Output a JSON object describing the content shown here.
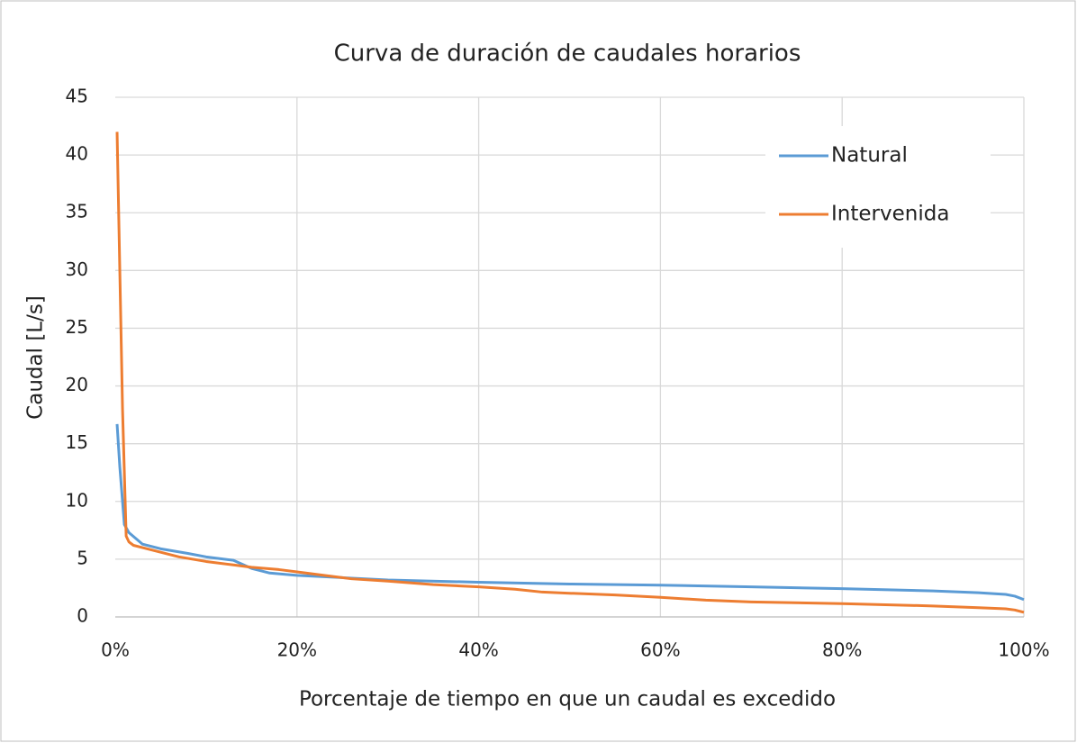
{
  "chart_data": {
    "type": "line",
    "title": "Curva de duración de caudales horarios",
    "xlabel": "Porcentaje de tiempo en que un caudal es excedido",
    "ylabel": "Caudal [L/s]",
    "xlim": [
      0,
      100
    ],
    "xticks": [
      {
        "value": 0,
        "label": "0%"
      },
      {
        "value": 20,
        "label": "20%"
      },
      {
        "value": 40,
        "label": "40%"
      },
      {
        "value": 60,
        "label": "60%"
      },
      {
        "value": 80,
        "label": "80%"
      },
      {
        "value": 100,
        "label": "100%"
      }
    ],
    "ylim": [
      0,
      45
    ],
    "yticks": [
      0,
      5,
      10,
      15,
      20,
      25,
      30,
      35,
      40,
      45
    ],
    "grid": true,
    "legend": "top-right",
    "series": [
      {
        "name": "Natural",
        "color": "#5b9bd5",
        "x": [
          0.2,
          0.5,
          1,
          1.5,
          3,
          5,
          8,
          10,
          13,
          15,
          17,
          20,
          25,
          30,
          40,
          50,
          60,
          70,
          80,
          90,
          95,
          98,
          99,
          100
        ],
        "values": [
          16.7,
          13,
          8,
          7.3,
          6.3,
          5.9,
          5.5,
          5.2,
          4.9,
          4.2,
          3.8,
          3.6,
          3.4,
          3.2,
          3.0,
          2.85,
          2.75,
          2.6,
          2.45,
          2.25,
          2.1,
          1.95,
          1.8,
          1.5
        ]
      },
      {
        "name": "Intervenida",
        "color": "#ed7d31",
        "x": [
          0.2,
          0.5,
          0.8,
          1.2,
          1.5,
          2,
          3,
          5,
          7,
          10,
          13,
          15,
          18,
          20,
          23,
          26,
          30,
          35,
          40,
          44,
          47,
          50,
          55,
          60,
          65,
          70,
          80,
          90,
          95,
          98,
          99,
          100
        ],
        "values": [
          42,
          30,
          18,
          7,
          6.5,
          6.2,
          6.0,
          5.6,
          5.2,
          4.8,
          4.5,
          4.3,
          4.1,
          3.9,
          3.6,
          3.3,
          3.1,
          2.8,
          2.6,
          2.4,
          2.15,
          2.05,
          1.9,
          1.7,
          1.45,
          1.3,
          1.15,
          0.95,
          0.8,
          0.7,
          0.6,
          0.4
        ]
      }
    ]
  }
}
